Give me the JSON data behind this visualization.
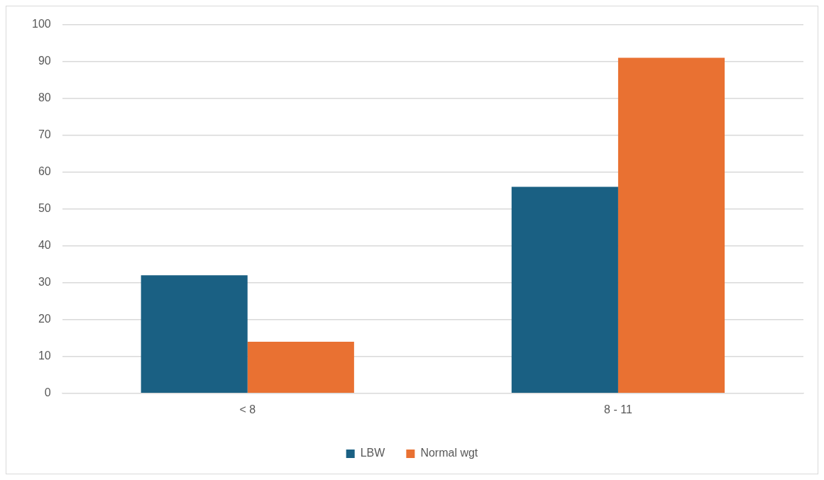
{
  "chart_data": {
    "type": "bar",
    "categories": [
      "< 8",
      "8 - 11"
    ],
    "series": [
      {
        "name": "LBW",
        "color": "#1a6083",
        "values": [
          32,
          56
        ]
      },
      {
        "name": "Normal wgt",
        "color": "#e97132",
        "values": [
          14,
          91
        ]
      }
    ],
    "ylim": [
      0,
      100
    ],
    "yticks": [
      0,
      10,
      20,
      30,
      40,
      50,
      60,
      70,
      80,
      90,
      100
    ],
    "grid": "y",
    "legend": "bottom"
  }
}
